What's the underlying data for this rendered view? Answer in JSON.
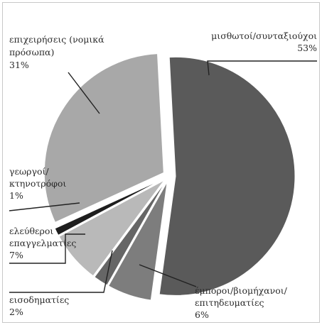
{
  "chart_data": {
    "type": "pie",
    "title": "",
    "slices": [
      {
        "lines": [
          "μισθωτοί/συνταξιούχοι"
        ],
        "pct_label": "53%",
        "value": 53,
        "color": "#5a5a5a"
      },
      {
        "lines": [
          "έμποροι/βιομήχανοι/",
          "επιτηδευματίες"
        ],
        "pct_label": "6%",
        "value": 6,
        "color": "#7d7d7d"
      },
      {
        "lines": [
          "εισοδηματίες"
        ],
        "pct_label": "2%",
        "value": 2,
        "color": "#666666"
      },
      {
        "lines": [
          "ελεύθεροι",
          "επαγγελματίες"
        ],
        "pct_label": "7%",
        "value": 7,
        "color": "#b9b9b9"
      },
      {
        "lines": [
          "γεωργοί/",
          "κτηνοτρόφοι"
        ],
        "pct_label": "1%",
        "value": 1,
        "color": "#1e1e1e"
      },
      {
        "lines": [
          "επιχειρήσεις (νομικά",
          "πρόσωπα)"
        ],
        "pct_label": "31%",
        "value": 31,
        "color": "#a8a8a8"
      }
    ]
  }
}
